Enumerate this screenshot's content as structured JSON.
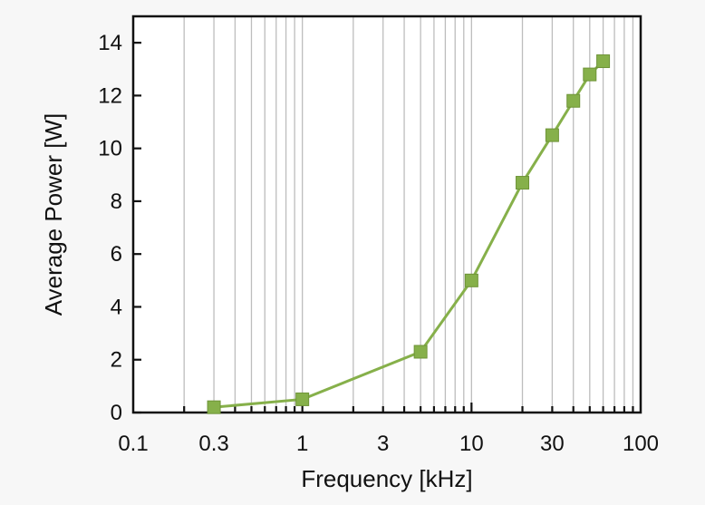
{
  "chart_data": {
    "type": "line",
    "title": "",
    "xlabel": "Frequency [kHz]",
    "ylabel": "Average Power [W]",
    "x_scale": "log",
    "xlim": [
      0.1,
      100
    ],
    "ylim": [
      0,
      15
    ],
    "x_ticks": [
      0.1,
      0.3,
      1,
      3,
      10,
      30,
      100
    ],
    "x_tick_labels": [
      "0.1",
      "0.3",
      "1",
      "3",
      "10",
      "30",
      "100"
    ],
    "y_ticks": [
      0,
      2,
      4,
      6,
      8,
      10,
      12,
      14
    ],
    "y_tick_labels": [
      "0",
      "2",
      "4",
      "6",
      "8",
      "10",
      "12",
      "14"
    ],
    "grid": "vertical minor and major",
    "legend": "none",
    "series": [
      {
        "color": "#86b04a",
        "marker": "square",
        "x": [
          0.3,
          1,
          5,
          10,
          20,
          30,
          40,
          50,
          60
        ],
        "y": [
          0.2,
          0.5,
          2.3,
          5.0,
          8.7,
          10.5,
          11.8,
          12.8,
          13.3
        ]
      }
    ]
  }
}
